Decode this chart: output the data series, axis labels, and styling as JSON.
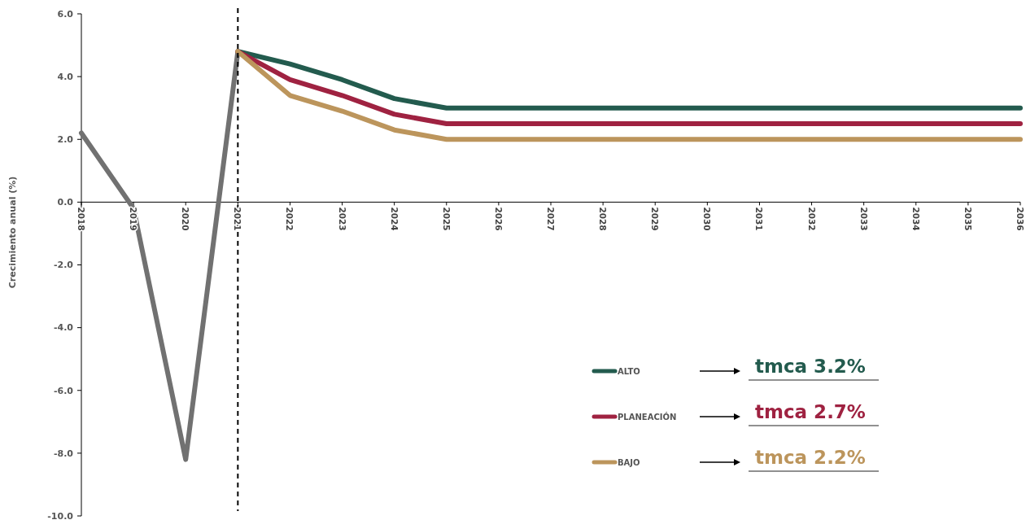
{
  "chart_data": {
    "type": "line",
    "ylabel": "Crecimiento anual (%)",
    "categories": [
      "2018",
      "2019",
      "2020",
      "2021",
      "2022",
      "2023",
      "2024",
      "2025",
      "2026",
      "2027",
      "2028",
      "2029",
      "2030",
      "2031",
      "2032",
      "2033",
      "2034",
      "2035",
      "2036"
    ],
    "series": [
      {
        "color": "#717171",
        "values": [
          2.2,
          -0.2,
          -8.2,
          4.8,
          null,
          null,
          null,
          null,
          null,
          null,
          null,
          null,
          null,
          null,
          null,
          null,
          null,
          null,
          null
        ]
      },
      {
        "name": "ALTO",
        "color": "#235b4e",
        "values": [
          null,
          null,
          null,
          4.8,
          4.4,
          3.9,
          3.3,
          3.0,
          3.0,
          3.0,
          3.0,
          3.0,
          3.0,
          3.0,
          3.0,
          3.0,
          3.0,
          3.0,
          3.0
        ]
      },
      {
        "name": "PLANEACIÓN",
        "color": "#9f2241",
        "values": [
          null,
          null,
          null,
          4.8,
          3.9,
          3.4,
          2.8,
          2.5,
          2.5,
          2.5,
          2.5,
          2.5,
          2.5,
          2.5,
          2.5,
          2.5,
          2.5,
          2.5,
          2.5
        ]
      },
      {
        "name": "BAJO",
        "color": "#bc955c",
        "values": [
          null,
          null,
          null,
          4.8,
          3.4,
          2.9,
          2.3,
          2.0,
          2.0,
          2.0,
          2.0,
          2.0,
          2.0,
          2.0,
          2.0,
          2.0,
          2.0,
          2.0,
          2.0
        ]
      }
    ],
    "ylim": [
      -10,
      6
    ],
    "yticks": [
      {
        "value": -10,
        "label": "-10.0"
      },
      {
        "value": -8,
        "label": "-8.0"
      },
      {
        "value": -6,
        "label": "-6.0"
      },
      {
        "value": -4,
        "label": "-4.0"
      },
      {
        "value": -2,
        "label": "-2.0"
      },
      {
        "value": 0,
        "label": "0.0"
      },
      {
        "value": 2,
        "label": "2.0"
      },
      {
        "value": 4,
        "label": "4.0"
      },
      {
        "value": 6,
        "label": "6.0"
      }
    ],
    "ref_lines": [
      {
        "axis": "x",
        "value": "2021",
        "color": "#000000",
        "line_style": "dashed"
      }
    ],
    "annotations": [
      "tmca 3.2%",
      "tmca 2.7%",
      "tmca 2.2%"
    ],
    "legend": "bottom right",
    "grid": false,
    "marker": "none",
    "line_style": "solid"
  }
}
